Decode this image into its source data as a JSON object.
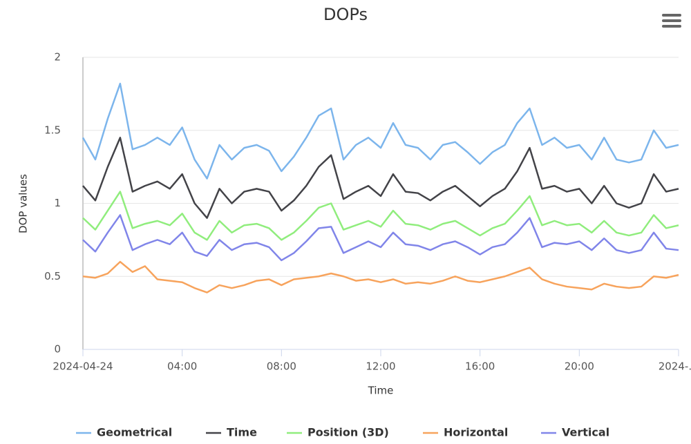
{
  "chart_data": {
    "type": "line",
    "title": "DOPs",
    "x_label": "Time",
    "y_label": "DOP values",
    "x": [
      0,
      0.5,
      1,
      1.5,
      2,
      2.5,
      3,
      3.5,
      4,
      4.5,
      5,
      5.5,
      6,
      6.5,
      7,
      7.5,
      8,
      8.5,
      9,
      9.5,
      10,
      10.5,
      11,
      11.5,
      12,
      12.5,
      13,
      13.5,
      14,
      14.5,
      15,
      15.5,
      16,
      16.5,
      17,
      17.5,
      18,
      18.5,
      19,
      19.5,
      20,
      20.5,
      21,
      21.5,
      22,
      22.5,
      23,
      23.5,
      24
    ],
    "series": [
      {
        "name": "Geometrical",
        "color": "#7cb5ec",
        "values": [
          1.45,
          1.3,
          1.58,
          1.82,
          1.37,
          1.4,
          1.45,
          1.4,
          1.52,
          1.3,
          1.17,
          1.4,
          1.3,
          1.38,
          1.4,
          1.36,
          1.22,
          1.32,
          1.45,
          1.6,
          1.65,
          1.3,
          1.4,
          1.45,
          1.38,
          1.55,
          1.4,
          1.38,
          1.3,
          1.4,
          1.42,
          1.35,
          1.27,
          1.35,
          1.4,
          1.55,
          1.65,
          1.4,
          1.45,
          1.38,
          1.4,
          1.3,
          1.45,
          1.3,
          1.28,
          1.3,
          1.5,
          1.38,
          1.4
        ]
      },
      {
        "name": "Time",
        "color": "#434348",
        "values": [
          1.12,
          1.02,
          1.25,
          1.45,
          1.08,
          1.12,
          1.15,
          1.1,
          1.2,
          1.0,
          0.9,
          1.1,
          1.0,
          1.08,
          1.1,
          1.08,
          0.95,
          1.02,
          1.12,
          1.25,
          1.33,
          1.03,
          1.08,
          1.12,
          1.05,
          1.2,
          1.08,
          1.07,
          1.02,
          1.08,
          1.12,
          1.05,
          0.98,
          1.05,
          1.1,
          1.22,
          1.38,
          1.1,
          1.12,
          1.08,
          1.1,
          1.0,
          1.12,
          1.0,
          0.97,
          1.0,
          1.2,
          1.08,
          1.1
        ]
      },
      {
        "name": "Position (3D)",
        "color": "#90ed7d",
        "values": [
          0.9,
          0.82,
          0.95,
          1.08,
          0.83,
          0.86,
          0.88,
          0.85,
          0.93,
          0.8,
          0.75,
          0.88,
          0.8,
          0.85,
          0.86,
          0.83,
          0.75,
          0.8,
          0.88,
          0.97,
          1.0,
          0.82,
          0.85,
          0.88,
          0.84,
          0.95,
          0.86,
          0.85,
          0.82,
          0.86,
          0.88,
          0.83,
          0.78,
          0.83,
          0.86,
          0.95,
          1.05,
          0.85,
          0.88,
          0.85,
          0.86,
          0.8,
          0.88,
          0.8,
          0.78,
          0.8,
          0.92,
          0.83,
          0.85
        ]
      },
      {
        "name": "Horizontal",
        "color": "#f7a35c",
        "values": [
          0.5,
          0.49,
          0.52,
          0.6,
          0.53,
          0.57,
          0.48,
          0.47,
          0.46,
          0.42,
          0.39,
          0.44,
          0.42,
          0.44,
          0.47,
          0.48,
          0.44,
          0.48,
          0.49,
          0.5,
          0.52,
          0.5,
          0.47,
          0.48,
          0.46,
          0.48,
          0.45,
          0.46,
          0.45,
          0.47,
          0.5,
          0.47,
          0.46,
          0.48,
          0.5,
          0.53,
          0.56,
          0.48,
          0.45,
          0.43,
          0.42,
          0.41,
          0.45,
          0.43,
          0.42,
          0.43,
          0.5,
          0.49,
          0.51
        ]
      },
      {
        "name": "Vertical",
        "color": "#8085e9",
        "values": [
          0.75,
          0.67,
          0.8,
          0.92,
          0.68,
          0.72,
          0.75,
          0.72,
          0.8,
          0.67,
          0.64,
          0.75,
          0.68,
          0.72,
          0.73,
          0.7,
          0.61,
          0.66,
          0.74,
          0.83,
          0.84,
          0.66,
          0.7,
          0.74,
          0.7,
          0.8,
          0.72,
          0.71,
          0.68,
          0.72,
          0.74,
          0.7,
          0.65,
          0.7,
          0.72,
          0.8,
          0.9,
          0.7,
          0.73,
          0.72,
          0.74,
          0.68,
          0.76,
          0.68,
          0.66,
          0.68,
          0.8,
          0.69,
          0.68
        ]
      }
    ],
    "xlim": [
      0,
      24
    ],
    "xticks": [
      {
        "value": 0,
        "label": "2024-04-24"
      },
      {
        "value": 4,
        "label": "04:00"
      },
      {
        "value": 8,
        "label": "08:00"
      },
      {
        "value": 12,
        "label": "12:00"
      },
      {
        "value": 16,
        "label": "16:00"
      },
      {
        "value": 20,
        "label": "20:00"
      },
      {
        "value": 24,
        "label": "2024-…"
      }
    ],
    "ylim": [
      0,
      2
    ],
    "yticks": [
      0,
      0.5,
      1,
      1.5,
      2
    ],
    "grid": true,
    "legend": "bottom"
  }
}
